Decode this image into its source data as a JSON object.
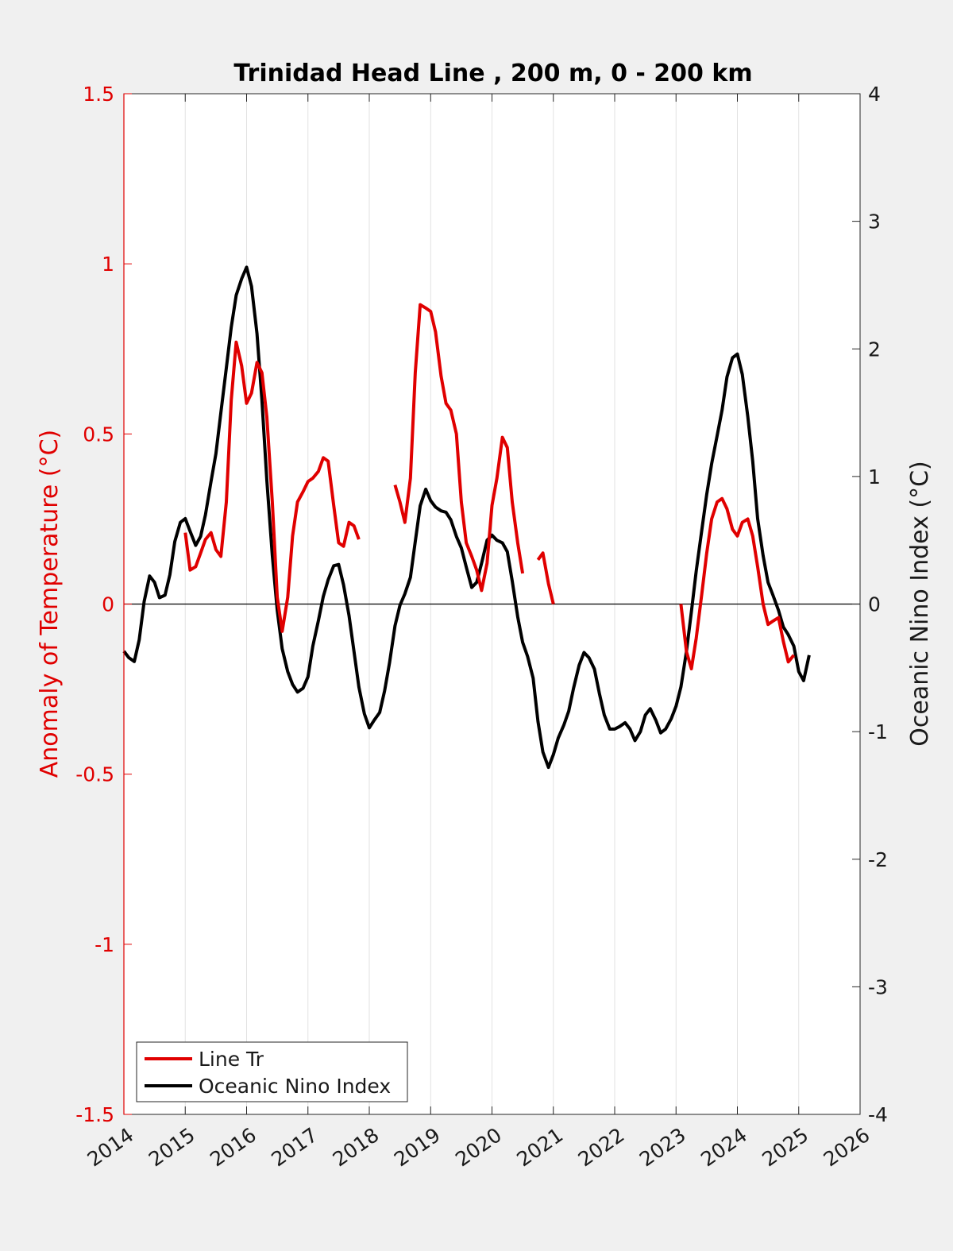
{
  "chart_data": {
    "type": "line",
    "title": "Trinidad Head Line , 200 m, 0 - 200 km",
    "xlabel": "",
    "ylabel": "Anomaly of Temperature (°C)",
    "ylabel_right": "Oceanic Nino Index (°C)",
    "xlim": [
      2014,
      2026
    ],
    "ylim": [
      -1.5,
      1.5
    ],
    "ylim_right": [
      -4,
      4
    ],
    "x_ticks": [
      2014,
      2015,
      2016,
      2017,
      2018,
      2019,
      2020,
      2021,
      2022,
      2023,
      2024,
      2025,
      2026
    ],
    "x_tick_labels": [
      "2014",
      "2015",
      "2016",
      "2017",
      "2018",
      "2019",
      "2020",
      "2021",
      "2022",
      "2023",
      "2024",
      "2025",
      "2026"
    ],
    "y_ticks_left": [
      -1.5,
      -1,
      -0.5,
      0,
      0.5,
      1,
      1.5
    ],
    "y_tick_labels_left": [
      "-1.5",
      "-1",
      "-0.5",
      "0",
      "0.5",
      "1",
      "1.5"
    ],
    "y_ticks_right": [
      -4,
      -3,
      -2,
      -1,
      0,
      1,
      2,
      3,
      4
    ],
    "y_tick_labels_right": [
      "-4",
      "-3",
      "-2",
      "-1",
      "0",
      "1",
      "2",
      "3",
      "4"
    ],
    "grid": "vertical lines at x ticks",
    "legend_position": "bottom-left",
    "zero_line": true,
    "colors": {
      "line_tr": "#e00000",
      "oni": "#000000",
      "left_axis": "#e00000",
      "right_axis": "#1a1a1a",
      "background": "#f0f0f0",
      "plot_area": "#ffffff"
    },
    "series": [
      {
        "name": "Line Tr",
        "axis": "left",
        "segments": [
          [
            [
              2015.0,
              0.21
            ],
            [
              2015.08,
              0.1
            ],
            [
              2015.17,
              0.11
            ],
            [
              2015.25,
              0.15
            ],
            [
              2015.33,
              0.19
            ],
            [
              2015.42,
              0.21
            ],
            [
              2015.5,
              0.16
            ],
            [
              2015.58,
              0.14
            ],
            [
              2015.67,
              0.3
            ],
            [
              2015.75,
              0.6
            ],
            [
              2015.83,
              0.77
            ],
            [
              2015.92,
              0.7
            ],
            [
              2016.0,
              0.59
            ],
            [
              2016.08,
              0.62
            ],
            [
              2016.17,
              0.71
            ],
            [
              2016.25,
              0.68
            ],
            [
              2016.33,
              0.55
            ],
            [
              2016.42,
              0.3
            ],
            [
              2016.5,
              0.02
            ],
            [
              2016.58,
              -0.08
            ],
            [
              2016.67,
              0.02
            ],
            [
              2016.75,
              0.2
            ],
            [
              2016.83,
              0.3
            ],
            [
              2016.92,
              0.33
            ],
            [
              2017.0,
              0.36
            ],
            [
              2017.08,
              0.37
            ],
            [
              2017.17,
              0.39
            ],
            [
              2017.25,
              0.43
            ],
            [
              2017.33,
              0.42
            ],
            [
              2017.42,
              0.29
            ],
            [
              2017.5,
              0.18
            ],
            [
              2017.58,
              0.17
            ],
            [
              2017.67,
              0.24
            ],
            [
              2017.75,
              0.23
            ],
            [
              2017.83,
              0.19
            ]
          ],
          [
            [
              2018.42,
              0.35
            ],
            [
              2018.5,
              0.3
            ],
            [
              2018.58,
              0.24
            ],
            [
              2018.67,
              0.37
            ],
            [
              2018.75,
              0.68
            ],
            [
              2018.83,
              0.88
            ],
            [
              2018.92,
              0.87
            ],
            [
              2019.0,
              0.86
            ],
            [
              2019.08,
              0.8
            ],
            [
              2019.17,
              0.67
            ],
            [
              2019.25,
              0.59
            ],
            [
              2019.33,
              0.57
            ],
            [
              2019.42,
              0.5
            ],
            [
              2019.5,
              0.3
            ],
            [
              2019.58,
              0.18
            ],
            [
              2019.67,
              0.14
            ],
            [
              2019.75,
              0.1
            ],
            [
              2019.83,
              0.04
            ],
            [
              2019.92,
              0.12
            ],
            [
              2020.0,
              0.29
            ],
            [
              2020.08,
              0.37
            ],
            [
              2020.17,
              0.49
            ],
            [
              2020.25,
              0.46
            ],
            [
              2020.33,
              0.3
            ],
            [
              2020.42,
              0.18
            ],
            [
              2020.5,
              0.09
            ]
          ],
          [
            [
              2020.75,
              0.13
            ],
            [
              2020.83,
              0.15
            ],
            [
              2020.92,
              0.06
            ],
            [
              2021.0,
              0.0
            ]
          ],
          [
            [
              2023.08,
              0.0
            ],
            [
              2023.17,
              -0.14
            ],
            [
              2023.25,
              -0.19
            ],
            [
              2023.33,
              -0.1
            ],
            [
              2023.42,
              0.03
            ],
            [
              2023.5,
              0.15
            ],
            [
              2023.58,
              0.25
            ],
            [
              2023.67,
              0.3
            ],
            [
              2023.75,
              0.31
            ],
            [
              2023.83,
              0.28
            ],
            [
              2023.92,
              0.22
            ],
            [
              2024.0,
              0.2
            ],
            [
              2024.08,
              0.24
            ],
            [
              2024.17,
              0.25
            ],
            [
              2024.25,
              0.2
            ],
            [
              2024.33,
              0.11
            ],
            [
              2024.42,
              0.0
            ],
            [
              2024.5,
              -0.06
            ],
            [
              2024.58,
              -0.05
            ],
            [
              2024.67,
              -0.04
            ],
            [
              2024.75,
              -0.11
            ],
            [
              2024.83,
              -0.17
            ],
            [
              2024.92,
              -0.15
            ]
          ]
        ]
      },
      {
        "name": "Oceanic Nino Index",
        "axis": "right",
        "segments": [
          [
            [
              2014.0,
              -0.37
            ],
            [
              2014.08,
              -0.42
            ],
            [
              2014.17,
              -0.45
            ],
            [
              2014.25,
              -0.28
            ],
            [
              2014.33,
              0.02
            ],
            [
              2014.42,
              0.22
            ],
            [
              2014.5,
              0.17
            ],
            [
              2014.58,
              0.05
            ],
            [
              2014.67,
              0.07
            ],
            [
              2014.75,
              0.23
            ],
            [
              2014.83,
              0.49
            ],
            [
              2014.92,
              0.64
            ],
            [
              2015.0,
              0.67
            ],
            [
              2015.08,
              0.57
            ],
            [
              2015.17,
              0.46
            ],
            [
              2015.25,
              0.53
            ],
            [
              2015.33,
              0.7
            ],
            [
              2015.42,
              0.96
            ],
            [
              2015.5,
              1.18
            ],
            [
              2015.58,
              1.5
            ],
            [
              2015.67,
              1.85
            ],
            [
              2015.75,
              2.17
            ],
            [
              2015.83,
              2.42
            ],
            [
              2015.92,
              2.55
            ],
            [
              2016.0,
              2.64
            ],
            [
              2016.08,
              2.49
            ],
            [
              2016.17,
              2.12
            ],
            [
              2016.25,
              1.6
            ],
            [
              2016.33,
              0.97
            ],
            [
              2016.42,
              0.38
            ],
            [
              2016.5,
              -0.05
            ],
            [
              2016.58,
              -0.35
            ],
            [
              2016.67,
              -0.53
            ],
            [
              2016.75,
              -0.63
            ],
            [
              2016.83,
              -0.69
            ],
            [
              2016.92,
              -0.66
            ],
            [
              2017.0,
              -0.57
            ],
            [
              2017.08,
              -0.33
            ],
            [
              2017.17,
              -0.13
            ],
            [
              2017.25,
              0.06
            ],
            [
              2017.33,
              0.19
            ],
            [
              2017.42,
              0.3
            ],
            [
              2017.5,
              0.31
            ],
            [
              2017.58,
              0.15
            ],
            [
              2017.67,
              -0.09
            ],
            [
              2017.75,
              -0.37
            ],
            [
              2017.83,
              -0.65
            ],
            [
              2017.92,
              -0.86
            ],
            [
              2018.0,
              -0.97
            ],
            [
              2018.08,
              -0.91
            ],
            [
              2018.17,
              -0.85
            ],
            [
              2018.25,
              -0.68
            ],
            [
              2018.33,
              -0.46
            ],
            [
              2018.42,
              -0.17
            ],
            [
              2018.5,
              -0.01
            ],
            [
              2018.58,
              0.08
            ],
            [
              2018.67,
              0.21
            ],
            [
              2018.75,
              0.49
            ],
            [
              2018.83,
              0.77
            ],
            [
              2018.92,
              0.9
            ],
            [
              2019.0,
              0.81
            ],
            [
              2019.08,
              0.76
            ],
            [
              2019.17,
              0.73
            ],
            [
              2019.25,
              0.72
            ],
            [
              2019.33,
              0.66
            ],
            [
              2019.42,
              0.53
            ],
            [
              2019.5,
              0.44
            ],
            [
              2019.58,
              0.29
            ],
            [
              2019.67,
              0.13
            ],
            [
              2019.75,
              0.17
            ],
            [
              2019.83,
              0.32
            ],
            [
              2019.92,
              0.5
            ],
            [
              2020.0,
              0.54
            ],
            [
              2020.08,
              0.5
            ],
            [
              2020.17,
              0.48
            ],
            [
              2020.25,
              0.41
            ],
            [
              2020.33,
              0.18
            ],
            [
              2020.42,
              -0.1
            ],
            [
              2020.5,
              -0.3
            ],
            [
              2020.58,
              -0.41
            ],
            [
              2020.67,
              -0.58
            ],
            [
              2020.75,
              -0.92
            ],
            [
              2020.83,
              -1.16
            ],
            [
              2020.92,
              -1.28
            ],
            [
              2021.0,
              -1.18
            ],
            [
              2021.08,
              -1.05
            ],
            [
              2021.17,
              -0.95
            ],
            [
              2021.25,
              -0.84
            ],
            [
              2021.33,
              -0.66
            ],
            [
              2021.42,
              -0.48
            ],
            [
              2021.5,
              -0.38
            ],
            [
              2021.58,
              -0.42
            ],
            [
              2021.67,
              -0.51
            ],
            [
              2021.75,
              -0.7
            ],
            [
              2021.83,
              -0.87
            ],
            [
              2021.92,
              -0.98
            ],
            [
              2022.0,
              -0.98
            ],
            [
              2022.08,
              -0.96
            ],
            [
              2022.17,
              -0.93
            ],
            [
              2022.25,
              -0.98
            ],
            [
              2022.33,
              -1.07
            ],
            [
              2022.42,
              -1.0
            ],
            [
              2022.5,
              -0.87
            ],
            [
              2022.58,
              -0.82
            ],
            [
              2022.67,
              -0.91
            ],
            [
              2022.75,
              -1.01
            ],
            [
              2022.83,
              -0.98
            ],
            [
              2022.92,
              -0.9
            ],
            [
              2023.0,
              -0.8
            ],
            [
              2023.08,
              -0.65
            ],
            [
              2023.17,
              -0.37
            ],
            [
              2023.25,
              -0.06
            ],
            [
              2023.33,
              0.26
            ],
            [
              2023.42,
              0.58
            ],
            [
              2023.5,
              0.86
            ],
            [
              2023.58,
              1.1
            ],
            [
              2023.67,
              1.32
            ],
            [
              2023.75,
              1.52
            ],
            [
              2023.83,
              1.78
            ],
            [
              2023.92,
              1.93
            ],
            [
              2024.0,
              1.96
            ],
            [
              2024.08,
              1.8
            ],
            [
              2024.17,
              1.47
            ],
            [
              2024.25,
              1.12
            ],
            [
              2024.33,
              0.67
            ],
            [
              2024.42,
              0.38
            ],
            [
              2024.5,
              0.17
            ],
            [
              2024.58,
              0.07
            ],
            [
              2024.67,
              -0.05
            ],
            [
              2024.75,
              -0.18
            ],
            [
              2024.83,
              -0.24
            ],
            [
              2024.92,
              -0.33
            ],
            [
              2025.0,
              -0.53
            ],
            [
              2025.08,
              -0.6
            ],
            [
              2025.17,
              -0.4
            ]
          ]
        ]
      }
    ]
  },
  "legend": {
    "entries": [
      {
        "label": "Line Tr",
        "color": "#e00000"
      },
      {
        "label": "Oceanic Nino Index",
        "color": "#000000"
      }
    ]
  }
}
